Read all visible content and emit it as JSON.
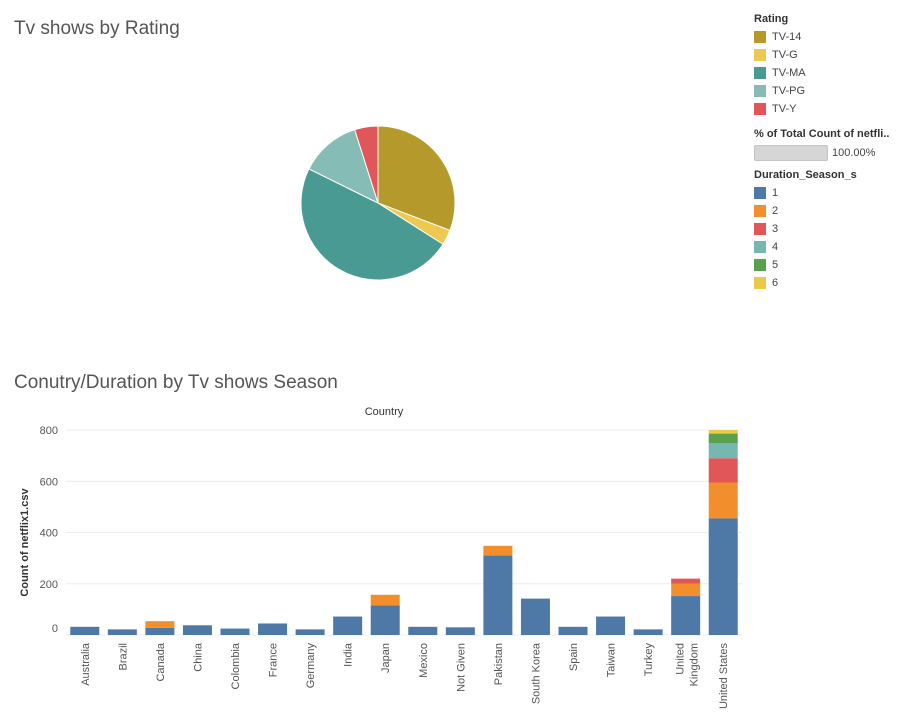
{
  "titles": {
    "pie": "Tv shows by Rating",
    "bar": "Conutry/Duration by Tv shows Season"
  },
  "legend_rating": {
    "title": "Rating",
    "items": [
      {
        "label": "TV-14",
        "color": "#b59a2b"
      },
      {
        "label": "TV-G",
        "color": "#edc951"
      },
      {
        "label": "TV-MA",
        "color": "#4a9a94"
      },
      {
        "label": "TV-PG",
        "color": "#86bcb6"
      },
      {
        "label": "TV-Y",
        "color": "#e15759"
      }
    ]
  },
  "legend_size": {
    "title": "% of Total Count of netfli..",
    "value": "100.00%"
  },
  "legend_season": {
    "title": "Duration_Season_s",
    "items": [
      {
        "label": "1",
        "color": "#4e79a7"
      },
      {
        "label": "2",
        "color": "#f28e2b"
      },
      {
        "label": "3",
        "color": "#e15759"
      },
      {
        "label": "4",
        "color": "#76b7b2"
      },
      {
        "label": "5",
        "color": "#59a14f"
      },
      {
        "label": "6",
        "color": "#edc948"
      }
    ]
  },
  "chart_data": [
    {
      "type": "pie",
      "title": "Tv shows by Rating",
      "slices": [
        {
          "label": "TV-14",
          "value": 30.8,
          "color": "#b59a2b"
        },
        {
          "label": "TV-G",
          "value": 3.2,
          "color": "#edc951"
        },
        {
          "label": "TV-MA",
          "value": 48.3,
          "color": "#4a9a94"
        },
        {
          "label": "TV-PG",
          "value": 12.8,
          "color": "#86bcb6"
        },
        {
          "label": "TV-Y",
          "value": 4.9,
          "color": "#e15759"
        }
      ]
    },
    {
      "type": "bar",
      "stacked": true,
      "title": "Conutry/Duration by Tv shows Season",
      "xlabel": "Country",
      "ylabel": "Count of netflix1.csv",
      "ylim": [
        0,
        800
      ],
      "yticks": [
        0,
        200,
        400,
        600,
        800
      ],
      "grid": true,
      "categories": [
        "Australia",
        "Brazil",
        "Canada",
        "China",
        "Colombia",
        "France",
        "Germany",
        "India",
        "Japan",
        "Mexico",
        "Not Given",
        "Pakistan",
        "South Korea",
        "Spain",
        "Taiwan",
        "Turkey",
        "United Kingdom",
        "United States"
      ],
      "category_lines": [
        [
          "Australia"
        ],
        [
          "Brazil"
        ],
        [
          "Canada"
        ],
        [
          "China"
        ],
        [
          "Colombia"
        ],
        [
          "France"
        ],
        [
          "Germany"
        ],
        [
          "India"
        ],
        [
          "Japan"
        ],
        [
          "Mexico"
        ],
        [
          "Not Given"
        ],
        [
          "Pakistan"
        ],
        [
          "South Korea"
        ],
        [
          "Spain"
        ],
        [
          "Taiwan"
        ],
        [
          "Turkey"
        ],
        [
          "United",
          "Kingdom"
        ],
        [
          "United States"
        ]
      ],
      "series": [
        {
          "name": "1",
          "color": "#4e79a7",
          "values": [
            32,
            22,
            28,
            38,
            25,
            45,
            22,
            72,
            115,
            32,
            30,
            310,
            142,
            32,
            72,
            22,
            152,
            455
          ]
        },
        {
          "name": "2",
          "color": "#f28e2b",
          "values": [
            0,
            0,
            26,
            0,
            0,
            0,
            0,
            0,
            42,
            0,
            0,
            38,
            0,
            0,
            0,
            0,
            48,
            140
          ]
        },
        {
          "name": "3",
          "color": "#e15759",
          "values": [
            0,
            0,
            0,
            0,
            0,
            0,
            0,
            0,
            0,
            0,
            0,
            0,
            0,
            0,
            0,
            0,
            20,
            95
          ]
        },
        {
          "name": "4",
          "color": "#76b7b2",
          "values": [
            0,
            0,
            0,
            0,
            0,
            0,
            0,
            0,
            0,
            0,
            0,
            0,
            0,
            0,
            0,
            0,
            0,
            58
          ]
        },
        {
          "name": "5",
          "color": "#59a14f",
          "values": [
            0,
            0,
            0,
            0,
            0,
            0,
            0,
            0,
            0,
            0,
            0,
            0,
            0,
            0,
            0,
            0,
            0,
            38
          ]
        },
        {
          "name": "6",
          "color": "#edc948",
          "values": [
            0,
            0,
            0,
            0,
            0,
            0,
            0,
            0,
            0,
            0,
            0,
            0,
            0,
            0,
            0,
            0,
            0,
            14
          ]
        }
      ]
    }
  ]
}
